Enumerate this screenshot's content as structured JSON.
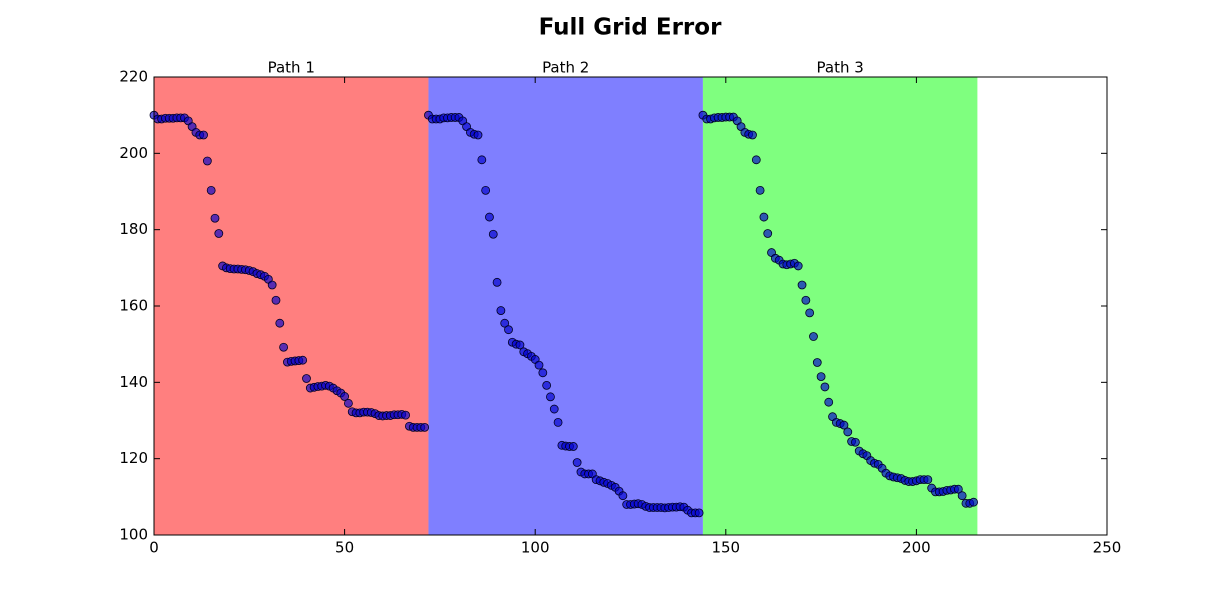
{
  "chart_data": {
    "type": "scatter",
    "title": "Full Grid Error",
    "xlim": [
      0,
      250
    ],
    "xticks": [
      0,
      50,
      100,
      150,
      200,
      250
    ],
    "ylim": [
      100,
      220
    ],
    "yticks": [
      100,
      120,
      140,
      160,
      180,
      200,
      220
    ],
    "regions": [
      {
        "label": "Path 1",
        "start": 0,
        "end": 72,
        "color": "#ff7f7f"
      },
      {
        "label": "Path 2",
        "start": 72,
        "end": 144,
        "color": "#7f7fff"
      },
      {
        "label": "Path 3",
        "start": 144,
        "end": 216,
        "color": "#7fff7f"
      }
    ],
    "color": "#0000cc",
    "x": [
      0,
      1,
      2,
      3,
      4,
      5,
      6,
      7,
      8,
      9,
      10,
      11,
      12,
      13,
      14,
      15,
      16,
      17,
      18,
      19,
      20,
      21,
      22,
      23,
      24,
      25,
      26,
      27,
      28,
      29,
      30,
      31,
      32,
      33,
      34,
      35,
      36,
      37,
      38,
      39,
      40,
      41,
      42,
      43,
      44,
      45,
      46,
      47,
      48,
      49,
      50,
      51,
      52,
      53,
      54,
      55,
      56,
      57,
      58,
      59,
      60,
      61,
      62,
      63,
      64,
      65,
      66,
      67,
      68,
      69,
      70,
      71,
      72,
      73,
      74,
      75,
      76,
      77,
      78,
      79,
      80,
      81,
      82,
      83,
      84,
      85,
      86,
      87,
      88,
      89,
      90,
      91,
      92,
      93,
      94,
      95,
      96,
      97,
      98,
      99,
      100,
      101,
      102,
      103,
      104,
      105,
      106,
      107,
      108,
      109,
      110,
      111,
      112,
      113,
      114,
      115,
      116,
      117,
      118,
      119,
      120,
      121,
      122,
      123,
      124,
      125,
      126,
      127,
      128,
      129,
      130,
      131,
      132,
      133,
      134,
      135,
      136,
      137,
      138,
      139,
      140,
      141,
      142,
      143,
      144,
      145,
      146,
      147,
      148,
      149,
      150,
      151,
      152,
      153,
      154,
      155,
      156,
      157,
      158,
      159,
      160,
      161,
      162,
      163,
      164,
      165,
      166,
      167,
      168,
      169,
      170,
      171,
      172,
      173,
      174,
      175,
      176,
      177,
      178,
      179,
      180,
      181,
      182,
      183,
      184,
      185,
      186,
      187,
      188,
      189,
      190,
      191,
      192,
      193,
      194,
      195,
      196,
      197,
      198,
      199,
      200,
      201,
      202,
      203,
      204,
      205,
      206,
      207,
      208,
      209,
      210,
      211,
      212,
      213,
      214,
      215
    ],
    "values": [
      210,
      209,
      209,
      209.2,
      209.2,
      209.2,
      209.3,
      209.3,
      209.3,
      208.5,
      207,
      205.5,
      204.8,
      204.8,
      198,
      190.3,
      183,
      179,
      170.5,
      170,
      169.8,
      169.7,
      169.7,
      169.6,
      169.5,
      169.3,
      169,
      168.5,
      168.2,
      167.8,
      167,
      165.5,
      161.5,
      155.5,
      149.2,
      145.3,
      145.5,
      145.6,
      145.7,
      145.8,
      141,
      138.5,
      138.7,
      138.9,
      139,
      139.2,
      139,
      138.5,
      137.8,
      137.2,
      136.3,
      134.5,
      132.3,
      132,
      132,
      132.2,
      132.2,
      132.1,
      131.8,
      131.3,
      131.2,
      131.3,
      131.3,
      131.5,
      131.5,
      131.6,
      131.4,
      128.5,
      128.2,
      128.2,
      128.2,
      128.2,
      210,
      209,
      209,
      209,
      209.3,
      209.3,
      209.4,
      209.4,
      209.4,
      208.5,
      207,
      205.5,
      205,
      204.8,
      198.3,
      190.3,
      183.3,
      178.8,
      166.2,
      158.8,
      155.5,
      153.8,
      150.5,
      150,
      149.8,
      148,
      147.5,
      146.8,
      146,
      144.5,
      142.5,
      139.2,
      136.2,
      133,
      129.5,
      123.5,
      123.3,
      123.2,
      123.2,
      119,
      116.5,
      116,
      116,
      116,
      114.5,
      114.2,
      113.8,
      113.5,
      113,
      112.5,
      111.5,
      110.3,
      108,
      108,
      108.1,
      108.2,
      108,
      107.5,
      107.2,
      107.2,
      107.2,
      107.2,
      107.1,
      107.2,
      107.3,
      107.3,
      107.4,
      107.3,
      106.5,
      105.8,
      105.8,
      105.8,
      210,
      209,
      209,
      209.3,
      209.4,
      209.4,
      209.5,
      209.5,
      209.5,
      208.5,
      207,
      205.5,
      205,
      204.8,
      198.3,
      190.3,
      183.3,
      179,
      174,
      172.5,
      172,
      171,
      170.8,
      171,
      171.2,
      170.5,
      165.5,
      161.5,
      158.2,
      152,
      145.2,
      141.5,
      138.8,
      134.8,
      131,
      129.5,
      129.2,
      128.8,
      127,
      124.5,
      124.3,
      122,
      121.3,
      120.8,
      119.5,
      118.8,
      118.5,
      117.5,
      116.2,
      115.5,
      115.2,
      115,
      114.8,
      114.3,
      114,
      114,
      114.2,
      114.5,
      114.5,
      114.5,
      112.3,
      111.3,
      111.3,
      111.4,
      111.7,
      111.8,
      112,
      112,
      110.3,
      108.3,
      108.3,
      108.6
    ]
  }
}
